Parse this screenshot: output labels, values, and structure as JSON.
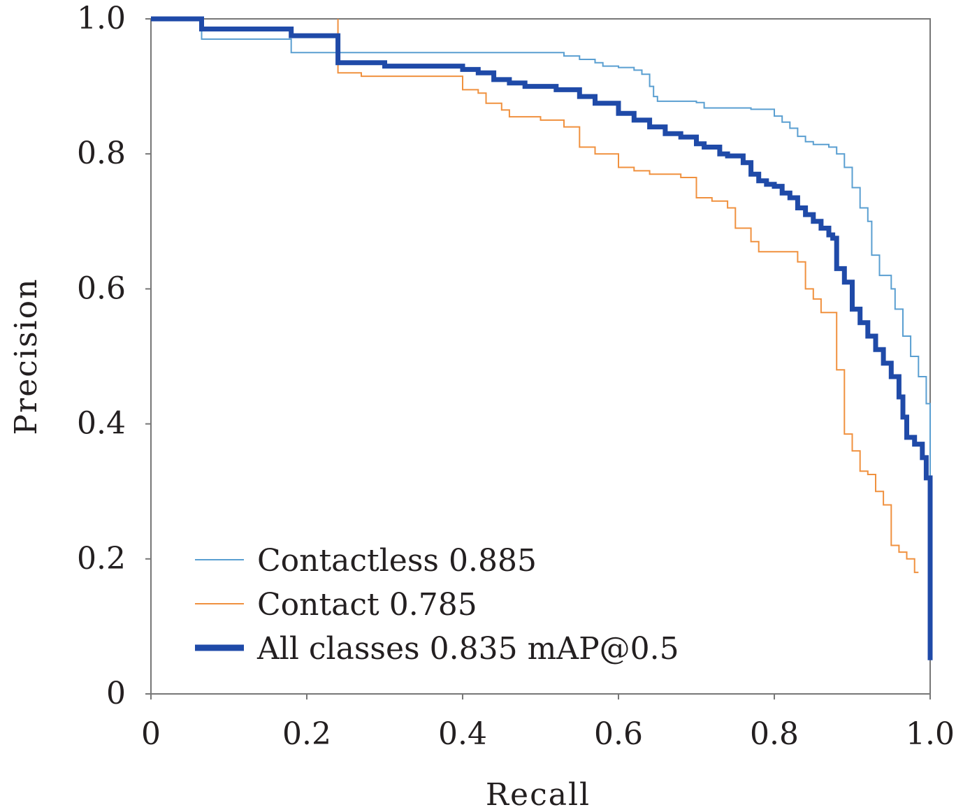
{
  "chart_data": {
    "type": "line",
    "xlabel": "Recall",
    "ylabel": "Precision",
    "xlim": [
      0,
      1
    ],
    "ylim": [
      0,
      1
    ],
    "x_ticks": [
      "0",
      "0.2",
      "0.4",
      "0.6",
      "0.8",
      "1.0"
    ],
    "y_ticks": [
      "0",
      "0.2",
      "0.4",
      "0.6",
      "0.8",
      "1.0"
    ],
    "grid": false,
    "legend_position": "bottom-left",
    "series": [
      {
        "name": "Contactless 0.885",
        "color": "#5a9fd1",
        "width": "thin",
        "points": [
          [
            0.0,
            1.0
          ],
          [
            0.06,
            1.0
          ],
          [
            0.065,
            0.97
          ],
          [
            0.17,
            0.97
          ],
          [
            0.18,
            0.95
          ],
          [
            0.24,
            0.95
          ],
          [
            0.26,
            0.95
          ],
          [
            0.52,
            0.95
          ],
          [
            0.53,
            0.945
          ],
          [
            0.55,
            0.94
          ],
          [
            0.57,
            0.935
          ],
          [
            0.58,
            0.93
          ],
          [
            0.6,
            0.928
          ],
          [
            0.62,
            0.924
          ],
          [
            0.63,
            0.918
          ],
          [
            0.64,
            0.9
          ],
          [
            0.645,
            0.885
          ],
          [
            0.65,
            0.878
          ],
          [
            0.7,
            0.876
          ],
          [
            0.71,
            0.868
          ],
          [
            0.77,
            0.866
          ],
          [
            0.8,
            0.856
          ],
          [
            0.81,
            0.847
          ],
          [
            0.82,
            0.838
          ],
          [
            0.83,
            0.826
          ],
          [
            0.84,
            0.818
          ],
          [
            0.85,
            0.814
          ],
          [
            0.87,
            0.81
          ],
          [
            0.88,
            0.8
          ],
          [
            0.89,
            0.78
          ],
          [
            0.9,
            0.75
          ],
          [
            0.91,
            0.72
          ],
          [
            0.92,
            0.7
          ],
          [
            0.925,
            0.65
          ],
          [
            0.935,
            0.62
          ],
          [
            0.95,
            0.6
          ],
          [
            0.955,
            0.57
          ],
          [
            0.965,
            0.53
          ],
          [
            0.975,
            0.5
          ],
          [
            0.985,
            0.47
          ],
          [
            0.995,
            0.43
          ],
          [
            1.0,
            0.42
          ],
          [
            1.0,
            0.3
          ]
        ]
      },
      {
        "name": "Contact 0.785",
        "color": "#f0913f",
        "width": "thin",
        "points": [
          [
            0.24,
            1.0
          ],
          [
            0.24,
            0.92
          ],
          [
            0.26,
            0.92
          ],
          [
            0.27,
            0.915
          ],
          [
            0.39,
            0.915
          ],
          [
            0.4,
            0.895
          ],
          [
            0.42,
            0.89
          ],
          [
            0.43,
            0.875
          ],
          [
            0.45,
            0.865
          ],
          [
            0.46,
            0.855
          ],
          [
            0.5,
            0.85
          ],
          [
            0.53,
            0.84
          ],
          [
            0.55,
            0.81
          ],
          [
            0.57,
            0.8
          ],
          [
            0.6,
            0.78
          ],
          [
            0.62,
            0.775
          ],
          [
            0.64,
            0.77
          ],
          [
            0.68,
            0.765
          ],
          [
            0.7,
            0.735
          ],
          [
            0.72,
            0.73
          ],
          [
            0.74,
            0.72
          ],
          [
            0.75,
            0.69
          ],
          [
            0.77,
            0.67
          ],
          [
            0.78,
            0.655
          ],
          [
            0.82,
            0.655
          ],
          [
            0.83,
            0.64
          ],
          [
            0.84,
            0.6
          ],
          [
            0.85,
            0.585
          ],
          [
            0.86,
            0.565
          ],
          [
            0.87,
            0.565
          ],
          [
            0.88,
            0.48
          ],
          [
            0.89,
            0.385
          ],
          [
            0.9,
            0.36
          ],
          [
            0.91,
            0.33
          ],
          [
            0.92,
            0.325
          ],
          [
            0.93,
            0.3
          ],
          [
            0.94,
            0.28
          ],
          [
            0.95,
            0.22
          ],
          [
            0.96,
            0.21
          ],
          [
            0.97,
            0.2
          ],
          [
            0.98,
            0.18
          ],
          [
            0.985,
            0.18
          ]
        ]
      },
      {
        "name": "All classes 0.835 mAP@0.5",
        "color": "#1f4aa8",
        "width": "thick",
        "points": [
          [
            0.0,
            1.0
          ],
          [
            0.06,
            1.0
          ],
          [
            0.065,
            0.985
          ],
          [
            0.18,
            0.985
          ],
          [
            0.18,
            0.975
          ],
          [
            0.24,
            0.975
          ],
          [
            0.24,
            0.935
          ],
          [
            0.3,
            0.93
          ],
          [
            0.38,
            0.93
          ],
          [
            0.4,
            0.925
          ],
          [
            0.42,
            0.92
          ],
          [
            0.44,
            0.91
          ],
          [
            0.46,
            0.905
          ],
          [
            0.48,
            0.9
          ],
          [
            0.5,
            0.9
          ],
          [
            0.52,
            0.895
          ],
          [
            0.55,
            0.885
          ],
          [
            0.57,
            0.875
          ],
          [
            0.6,
            0.86
          ],
          [
            0.62,
            0.85
          ],
          [
            0.64,
            0.84
          ],
          [
            0.66,
            0.83
          ],
          [
            0.68,
            0.825
          ],
          [
            0.7,
            0.815
          ],
          [
            0.71,
            0.81
          ],
          [
            0.73,
            0.8
          ],
          [
            0.74,
            0.797
          ],
          [
            0.76,
            0.787
          ],
          [
            0.77,
            0.77
          ],
          [
            0.78,
            0.76
          ],
          [
            0.79,
            0.755
          ],
          [
            0.8,
            0.752
          ],
          [
            0.81,
            0.742
          ],
          [
            0.82,
            0.735
          ],
          [
            0.83,
            0.72
          ],
          [
            0.84,
            0.71
          ],
          [
            0.85,
            0.7
          ],
          [
            0.86,
            0.69
          ],
          [
            0.87,
            0.68
          ],
          [
            0.875,
            0.675
          ],
          [
            0.88,
            0.63
          ],
          [
            0.89,
            0.61
          ],
          [
            0.9,
            0.57
          ],
          [
            0.91,
            0.55
          ],
          [
            0.92,
            0.53
          ],
          [
            0.93,
            0.51
          ],
          [
            0.94,
            0.49
          ],
          [
            0.95,
            0.47
          ],
          [
            0.96,
            0.44
          ],
          [
            0.965,
            0.41
          ],
          [
            0.97,
            0.38
          ],
          [
            0.98,
            0.37
          ],
          [
            0.99,
            0.35
          ],
          [
            0.995,
            0.32
          ],
          [
            1.0,
            0.3
          ],
          [
            1.0,
            0.05
          ]
        ]
      }
    ]
  }
}
